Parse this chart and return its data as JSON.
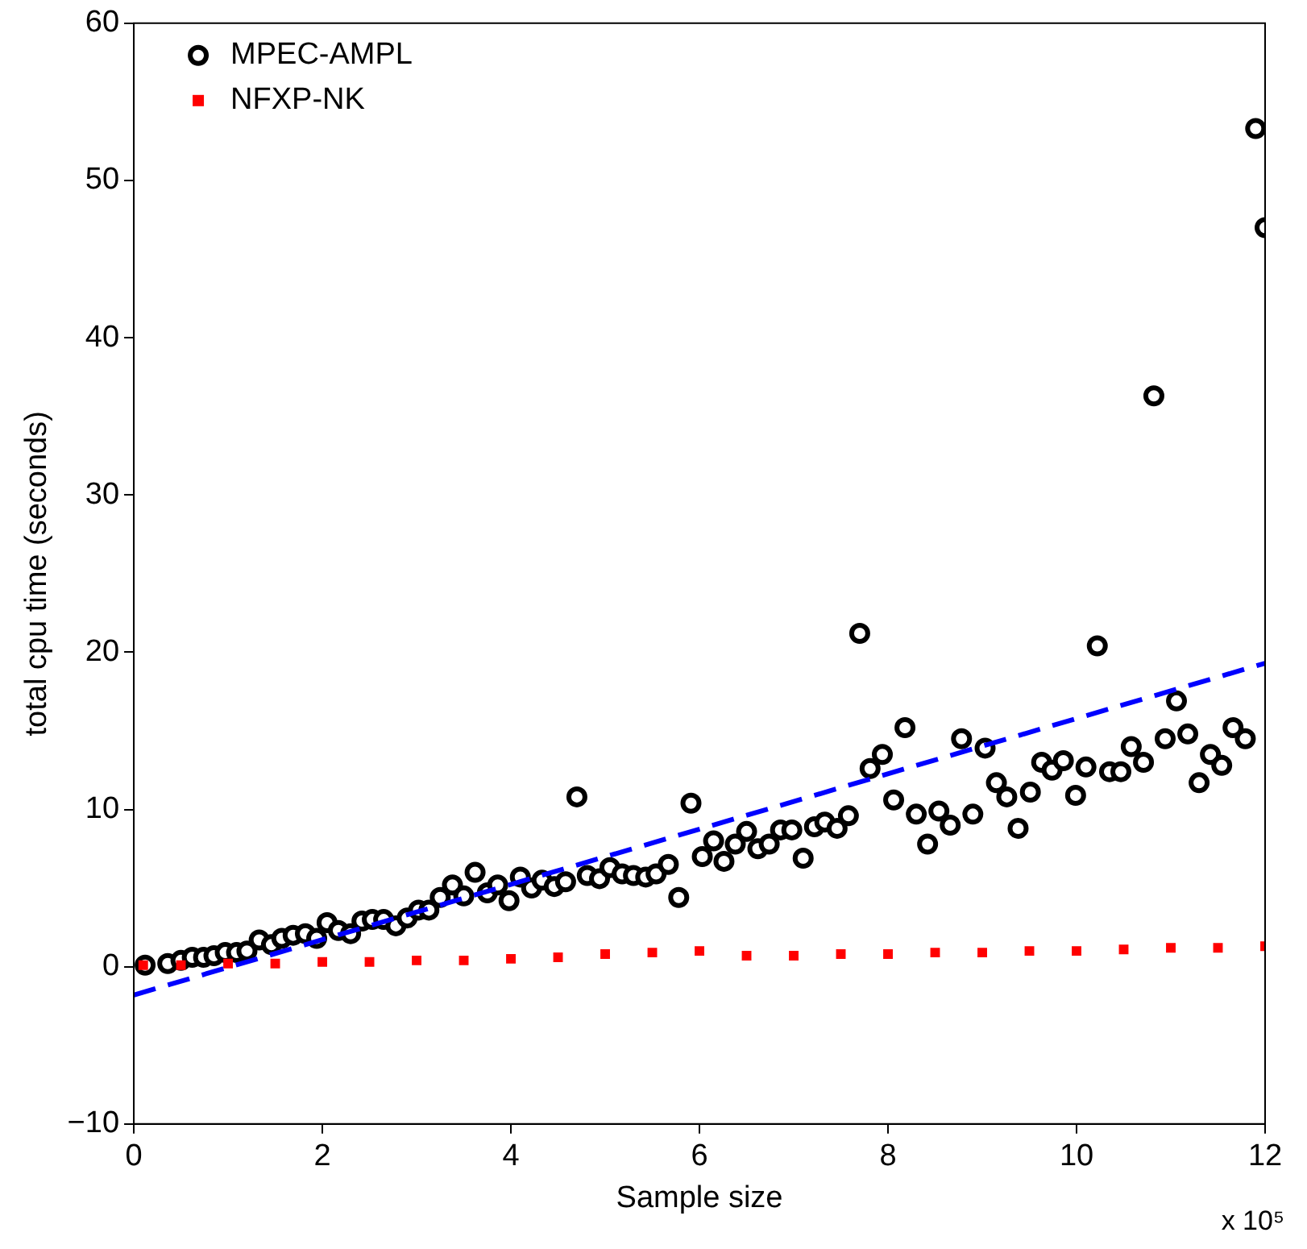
{
  "chart_data": {
    "type": "scatter",
    "xlabel": "Sample size",
    "ylabel": "total cpu time (seconds)",
    "xlim": [
      0,
      12
    ],
    "xticks": [
      0,
      2,
      4,
      6,
      8,
      10,
      12
    ],
    "ylim": [
      -10,
      60
    ],
    "yticks": [
      -10,
      0,
      10,
      20,
      30,
      40,
      50,
      60
    ],
    "grid": false,
    "legend": "top left",
    "annotations": [
      "x 10⁵"
    ],
    "series": [
      {
        "name": "MPEC-AMPL",
        "color": "#000000",
        "marker": "circle",
        "x": [
          0.12,
          0.36,
          0.5,
          0.62,
          0.74,
          0.85,
          0.97,
          1.09,
          1.2,
          1.33,
          1.46,
          1.57,
          1.69,
          1.82,
          1.94,
          2.05,
          2.17,
          2.3,
          2.42,
          2.53,
          2.65,
          2.78,
          2.9,
          3.02,
          3.13,
          3.25,
          3.38,
          3.5,
          3.62,
          3.75,
          3.86,
          3.98,
          4.1,
          4.22,
          4.33,
          4.46,
          4.58,
          4.7,
          4.81,
          4.94,
          5.05,
          5.18,
          5.3,
          5.43,
          5.54,
          5.67,
          5.78,
          5.91,
          6.03,
          6.15,
          6.26,
          6.38,
          6.5,
          6.62,
          6.74,
          6.86,
          6.98,
          7.1,
          7.22,
          7.33,
          7.46,
          7.58,
          7.7,
          7.81,
          7.94,
          8.06,
          8.18,
          8.3,
          8.42,
          8.54,
          8.66,
          8.78,
          8.9,
          9.03,
          9.15,
          9.26,
          9.38,
          9.51,
          9.63,
          9.74,
          9.86,
          9.99,
          10.1,
          10.22,
          10.35,
          10.47,
          10.58,
          10.71,
          10.82,
          10.94,
          11.06,
          11.18,
          11.3,
          11.42,
          11.54,
          11.66,
          11.79,
          11.9,
          12.0
        ],
        "values": [
          0.1,
          0.2,
          0.4,
          0.6,
          0.6,
          0.7,
          0.9,
          0.9,
          1.0,
          1.7,
          1.4,
          1.8,
          2.0,
          2.1,
          1.8,
          2.8,
          2.3,
          2.1,
          2.9,
          3.0,
          3.0,
          2.6,
          3.1,
          3.6,
          3.6,
          4.4,
          5.2,
          4.5,
          6.0,
          4.7,
          5.2,
          4.2,
          5.7,
          5.0,
          5.5,
          5.1,
          5.4,
          10.8,
          5.8,
          5.6,
          6.3,
          5.9,
          5.8,
          5.7,
          5.9,
          6.5,
          4.4,
          10.4,
          7.0,
          8.0,
          6.7,
          7.8,
          8.6,
          7.5,
          7.8,
          8.7,
          8.7,
          6.9,
          8.9,
          9.2,
          8.8,
          9.6,
          21.2,
          12.6,
          13.5,
          10.6,
          15.2,
          9.7,
          7.8,
          9.9,
          9.0,
          14.5,
          9.7,
          13.9,
          11.7,
          10.8,
          8.8,
          11.1,
          13.0,
          12.5,
          13.1,
          10.9,
          12.7,
          20.4,
          12.4,
          12.4,
          14.0,
          13.0,
          36.3,
          14.5,
          16.9,
          14.8,
          11.7,
          13.5,
          12.8,
          15.2,
          14.5,
          53.3,
          47.0
        ]
      },
      {
        "name": "NFXP-NK",
        "color": "#ff0000",
        "marker": "square",
        "x": [
          0.1,
          0.5,
          1,
          1.5,
          2,
          2.5,
          3,
          3.5,
          4,
          4.5,
          5,
          5.5,
          6,
          6.5,
          7,
          7.5,
          8,
          8.5,
          9,
          9.5,
          10,
          10.5,
          11,
          11.5,
          12
        ],
        "values": [
          0.1,
          0.1,
          0.2,
          0.2,
          0.3,
          0.3,
          0.4,
          0.4,
          0.5,
          0.6,
          0.8,
          0.9,
          1.0,
          0.7,
          0.7,
          0.8,
          0.8,
          0.9,
          0.9,
          1.0,
          1.0,
          1.1,
          1.2,
          1.2,
          1.3
        ]
      },
      {
        "type": "line",
        "color": "#0000ff",
        "line_style": "dashed",
        "marker": "none",
        "x": [
          0,
          12
        ],
        "values": [
          -1.8,
          19.3
        ]
      }
    ]
  }
}
